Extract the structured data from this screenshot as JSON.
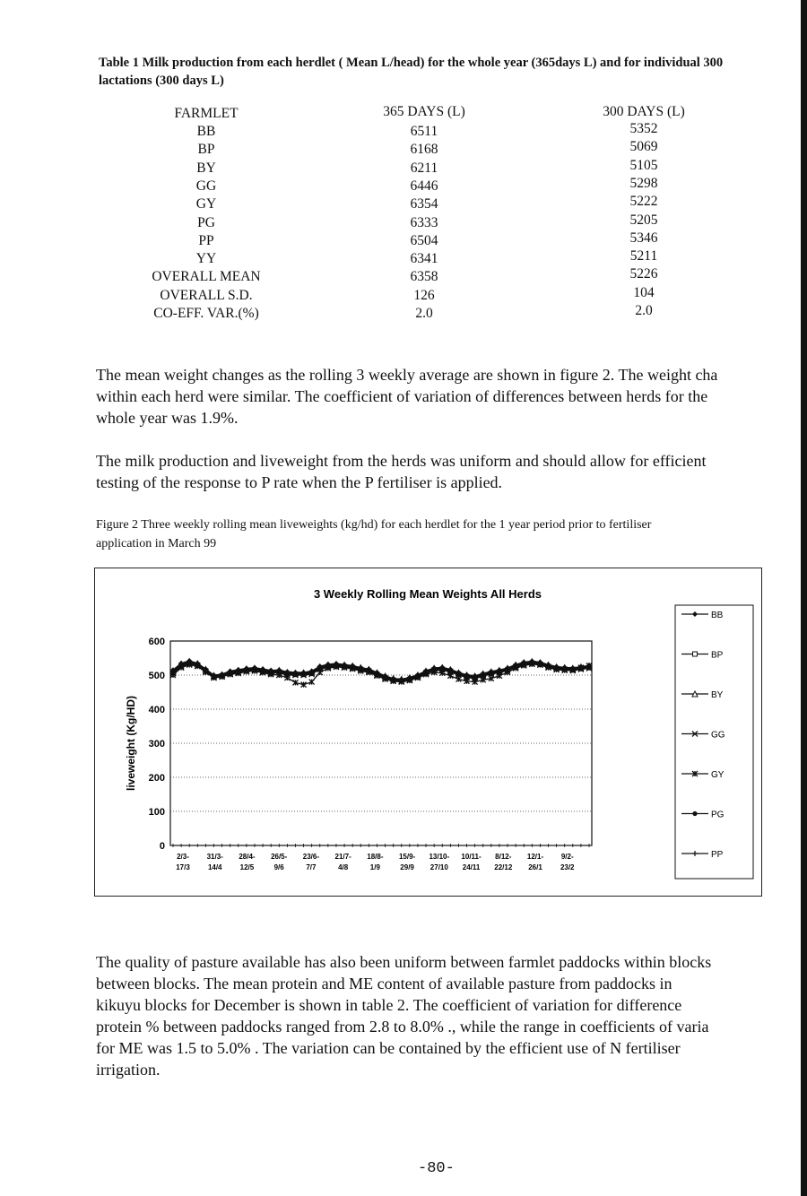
{
  "table1": {
    "caption_line1": "Table 1  Milk production from each herdlet ( Mean L/head) for the whole year (365days L) and for individual 300",
    "caption_line2": "lactations (300 days L)",
    "headers": [
      "FARMLET",
      "365 DAYS (L)",
      "300 DAYS (L)"
    ],
    "rows": [
      [
        "BB",
        "6511",
        "5352"
      ],
      [
        "BP",
        "6168",
        "5069"
      ],
      [
        "BY",
        "6211",
        "5105"
      ],
      [
        "GG",
        "6446",
        "5298"
      ],
      [
        "GY",
        "6354",
        "5222"
      ],
      [
        "PG",
        "6333",
        "5205"
      ],
      [
        "PP",
        "6504",
        "5346"
      ],
      [
        "YY",
        "6341",
        "5211"
      ],
      [
        "OVERALL MEAN",
        "6358",
        "5226"
      ],
      [
        "OVERALL S.D.",
        "126",
        "104"
      ],
      [
        "CO-EFF. VAR.(%)",
        "2.0",
        "2.0"
      ]
    ]
  },
  "paragraph1": [
    "The mean weight changes as the rolling 3 weekly average are shown in figure 2.  The weight cha",
    "within each herd were similar.  The coefficient of variation of differences between herds for the",
    "whole year was 1.9%."
  ],
  "paragraph2": [
    "The milk production and liveweight from the herds was uniform and should allow  for efficient",
    "testing of the response to P rate when the P fertiliser is applied."
  ],
  "figure2": {
    "caption_line1": "Figure 2  Three weekly rolling mean liveweights (kg/hd) for each herdlet for the 1 year period prior to fertiliser",
    "caption_line2": "application in March 99"
  },
  "chart_data": {
    "type": "line",
    "title": "3 Weekly Rolling Mean Weights All Herds",
    "xlabel": "",
    "ylabel": "liveweight (Kg/HD)",
    "ylim": [
      0,
      600
    ],
    "yticks": [
      "0",
      "100",
      "200",
      "300",
      "400",
      "500",
      "600"
    ],
    "grid": "dotted horizontal",
    "legend_position": "right",
    "x_tick_labels": [
      [
        "2/3-",
        "17/3"
      ],
      [
        "31/3-",
        "14/4"
      ],
      [
        "28/4-",
        "12/5"
      ],
      [
        "26/5-",
        "9/6"
      ],
      [
        "23/6-",
        "7/7"
      ],
      [
        "21/7-",
        "4/8"
      ],
      [
        "18/8-",
        "1/9"
      ],
      [
        "15/9-",
        "29/9"
      ],
      [
        "13/10-",
        "27/10"
      ],
      [
        "10/11-",
        "24/11"
      ],
      [
        "8/12-",
        "22/12"
      ],
      [
        "12/1-",
        "26/1"
      ],
      [
        "9/2-",
        "23/2"
      ]
    ],
    "series": [
      {
        "name": "BB",
        "marker": "diamond-filled",
        "values": [
          515,
          535,
          542,
          535,
          518,
          500,
          503,
          512,
          516,
          520,
          522,
          518,
          514,
          515,
          510,
          508,
          508,
          512,
          526,
          532,
          534,
          531,
          528,
          522,
          518,
          508,
          498,
          490,
          488,
          493,
          501,
          513,
          521,
          523,
          517,
          508,
          501,
          498,
          505,
          511,
          515,
          521,
          531,
          538,
          541,
          538,
          531,
          525,
          523,
          521,
          525,
          528
        ]
      },
      {
        "name": "BP",
        "marker": "square-open",
        "values": [
          507,
          527,
          535,
          529,
          512,
          495,
          497,
          505,
          509,
          513,
          515,
          511,
          507,
          509,
          503,
          502,
          502,
          505,
          519,
          525,
          527,
          525,
          522,
          517,
          512,
          502,
          492,
          485,
          483,
          487,
          495,
          507,
          515,
          517,
          511,
          502,
          495,
          492,
          499,
          505,
          509,
          515,
          525,
          532,
          535,
          532,
          525,
          519,
          517,
          515,
          519,
          522
        ]
      },
      {
        "name": "BY",
        "marker": "triangle-open",
        "values": [
          512,
          533,
          540,
          534,
          517,
          499,
          501,
          510,
          514,
          518,
          520,
          516,
          512,
          514,
          508,
          506,
          507,
          510,
          524,
          530,
          532,
          530,
          527,
          522,
          517,
          507,
          497,
          490,
          488,
          492,
          500,
          512,
          520,
          522,
          516,
          507,
          500,
          497,
          504,
          510,
          514,
          520,
          530,
          537,
          540,
          537,
          530,
          524,
          522,
          520,
          524,
          527
        ]
      },
      {
        "name": "GG",
        "marker": "x",
        "values": [
          505,
          525,
          532,
          527,
          510,
          493,
          496,
          503,
          507,
          511,
          514,
          509,
          505,
          507,
          500,
          500,
          500,
          503,
          517,
          523,
          525,
          523,
          520,
          515,
          510,
          500,
          490,
          483,
          481,
          485,
          493,
          505,
          513,
          515,
          509,
          500,
          493,
          490,
          497,
          503,
          507,
          513,
          523,
          530,
          533,
          530,
          523,
          517,
          515,
          513,
          517,
          520
        ]
      },
      {
        "name": "GY",
        "marker": "asterisk",
        "values": [
          500,
          522,
          530,
          526,
          508,
          492,
          495,
          502,
          505,
          510,
          512,
          507,
          502,
          500,
          492,
          478,
          472,
          480,
          508,
          520,
          524,
          522,
          518,
          512,
          508,
          498,
          488,
          482,
          480,
          484,
          492,
          502,
          508,
          506,
          498,
          488,
          482,
          480,
          486,
          490,
          498,
          508,
          520,
          528,
          532,
          530,
          522,
          516,
          514,
          516,
          522,
          528
        ]
      },
      {
        "name": "PG",
        "marker": "circle-filled",
        "values": [
          508,
          528,
          536,
          530,
          513,
          496,
          498,
          506,
          510,
          514,
          516,
          512,
          508,
          510,
          504,
          503,
          503,
          506,
          520,
          526,
          528,
          526,
          523,
          518,
          513,
          503,
          493,
          486,
          484,
          488,
          496,
          508,
          516,
          518,
          512,
          503,
          496,
          493,
          500,
          506,
          510,
          516,
          526,
          533,
          536,
          533,
          526,
          520,
          518,
          516,
          520,
          523
        ]
      },
      {
        "name": "PP",
        "marker": "plus",
        "values": [
          511,
          531,
          539,
          533,
          516,
          498,
          500,
          508,
          512,
          516,
          518,
          514,
          510,
          512,
          506,
          505,
          505,
          508,
          522,
          528,
          530,
          528,
          525,
          520,
          515,
          505,
          495,
          488,
          486,
          490,
          498,
          510,
          518,
          520,
          514,
          505,
          498,
          495,
          502,
          508,
          512,
          518,
          528,
          535,
          538,
          535,
          528,
          522,
          520,
          518,
          522,
          525
        ]
      }
    ]
  },
  "paragraph3": [
    "The quality of pasture available has also been uniform between  farmlet paddocks within blocks",
    "between blocks.   The mean protein and ME content of available pasture from   paddocks in",
    "kikuyu blocks for December is shown in table 2.  The coefficient of variation for difference",
    "protein % between paddocks  ranged from 2.8 to 8.0% ., while the range in coefficients of varia",
    "for ME was 1.5 to 5.0% .    The variation can be contained by the efficient use of N fertiliser",
    "irrigation."
  ],
  "page_number": "-80-"
}
